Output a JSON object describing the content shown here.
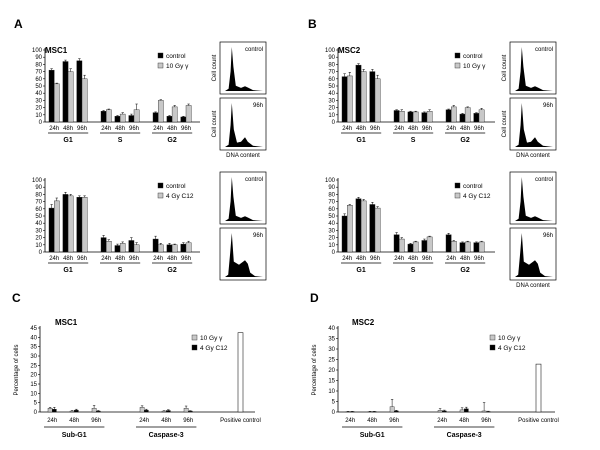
{
  "colors": {
    "series_dark": "#000000",
    "series_light": "#c8c8c8",
    "bar_stroke": "#222222"
  },
  "chart_data": [
    {
      "id": "A1",
      "panel_label": "A",
      "type": "bar",
      "title": "MSC1",
      "ylabel": "",
      "ylim": [
        0,
        100
      ],
      "yticks": [
        0,
        10,
        20,
        30,
        40,
        50,
        60,
        70,
        80,
        90,
        100
      ],
      "subcategories": [
        "24h",
        "48h",
        "96h"
      ],
      "groups": [
        "G1",
        "S",
        "G2"
      ],
      "legend_position": "right",
      "series": [
        {
          "name": "control",
          "color": "#000000",
          "values": [
            [
              72,
              84,
              85
            ],
            [
              15,
              8,
              9
            ],
            [
              13,
              8,
              7
            ]
          ],
          "errors": [
            [
              2,
              2,
              3
            ],
            [
              1,
              1,
              2
            ],
            [
              1,
              1,
              1
            ]
          ]
        },
        {
          "name": "10 Gy γ",
          "color": "#c8c8c8",
          "values": [
            [
              53,
              70,
              60
            ],
            [
              17,
              11,
              17
            ],
            [
              30,
              21,
              23
            ]
          ],
          "errors": [
            [
              1,
              4,
              5
            ],
            [
              1,
              2,
              8
            ],
            [
              1,
              2,
              2
            ]
          ]
        }
      ]
    },
    {
      "id": "A2",
      "panel_label": "",
      "type": "bar",
      "title": "",
      "ylabel": "",
      "ylim": [
        0,
        100
      ],
      "yticks": [
        0,
        10,
        20,
        30,
        40,
        50,
        60,
        70,
        80,
        90,
        100
      ],
      "subcategories": [
        "24h",
        "48h",
        "96h"
      ],
      "groups": [
        "G1",
        "S",
        "G2"
      ],
      "legend_position": "right",
      "series": [
        {
          "name": "control",
          "color": "#000000",
          "values": [
            [
              61,
              80,
              76
            ],
            [
              20,
              9,
              16
            ],
            [
              18,
              10,
              11
            ]
          ],
          "errors": [
            [
              5,
              3,
              2
            ],
            [
              3,
              2,
              4
            ],
            [
              4,
              2,
              2
            ]
          ]
        },
        {
          "name": "4 Gy C12",
          "color": "#c8c8c8",
          "values": [
            [
              71,
              78,
              76
            ],
            [
              15,
              12,
              10
            ],
            [
              10,
              10,
              13
            ]
          ],
          "errors": [
            [
              4,
              2,
              2
            ],
            [
              2,
              2,
              3
            ],
            [
              2,
              1,
              2
            ]
          ]
        }
      ]
    },
    {
      "id": "B1",
      "panel_label": "B",
      "type": "bar",
      "title": "MSC2",
      "ylabel": "",
      "ylim": [
        0,
        100
      ],
      "yticks": [
        0,
        10,
        20,
        30,
        40,
        50,
        60,
        70,
        80,
        90,
        100
      ],
      "subcategories": [
        "24h",
        "48h",
        "96h"
      ],
      "groups": [
        "G1",
        "S",
        "G2"
      ],
      "legend_position": "right",
      "series": [
        {
          "name": "control",
          "color": "#000000",
          "values": [
            [
              63,
              79,
              70
            ],
            [
              16,
              14,
              13
            ],
            [
              17,
              11,
              12
            ]
          ],
          "errors": [
            [
              4,
              2,
              3
            ],
            [
              1,
              1,
              1
            ],
            [
              1,
              1,
              1
            ]
          ]
        },
        {
          "name": "10 Gy γ",
          "color": "#c8c8c8",
          "values": [
            [
              64,
              70,
              60
            ],
            [
              15,
              14,
              15
            ],
            [
              21,
              20,
              17
            ]
          ],
          "errors": [
            [
              5,
              3,
              5
            ],
            [
              2,
              1,
              2
            ],
            [
              2,
              1,
              2
            ]
          ]
        }
      ]
    },
    {
      "id": "B2",
      "panel_label": "",
      "type": "bar",
      "title": "",
      "ylabel": "",
      "ylim": [
        0,
        100
      ],
      "yticks": [
        0,
        10,
        20,
        30,
        40,
        50,
        60,
        70,
        80,
        90,
        100
      ],
      "subcategories": [
        "24h",
        "48h",
        "96h"
      ],
      "groups": [
        "G1",
        "S",
        "G2"
      ],
      "legend_position": "right",
      "series": [
        {
          "name": "control",
          "color": "#000000",
          "values": [
            [
              50,
              74,
              66
            ],
            [
              24,
              11,
              16
            ],
            [
              24,
              13,
              13
            ]
          ],
          "errors": [
            [
              3,
              2,
              3
            ],
            [
              3,
              1,
              2
            ],
            [
              2,
              1,
              1
            ]
          ]
        },
        {
          "name": "4 Gy C12",
          "color": "#c8c8c8",
          "values": [
            [
              65,
              71,
              61
            ],
            [
              18,
              14,
              21
            ],
            [
              15,
              14,
              14
            ]
          ],
          "errors": [
            [
              1,
              2,
              2
            ],
            [
              2,
              1,
              1
            ],
            [
              1,
              1,
              1
            ]
          ]
        }
      ]
    },
    {
      "id": "C",
      "panel_label": "C",
      "type": "bar",
      "title": "MSC1",
      "ylabel": "Percentage of cells",
      "ylim": [
        0,
        45
      ],
      "yticks": [
        0,
        5,
        10,
        15,
        20,
        25,
        30,
        35,
        40,
        45
      ],
      "subcategories": [
        "24h",
        "48h",
        "96h"
      ],
      "groups": [
        "Sub-G1",
        "Caspase-3"
      ],
      "control_label": "Positive control",
      "control_value": 42.5,
      "legend_position": "top-right",
      "series": [
        {
          "name": "10 Gy γ",
          "color": "#c8c8c8",
          "values": [
            [
              2,
              0.5,
              2
            ],
            [
              2.5,
              0.5,
              2
            ]
          ],
          "errors": [
            [
              0.5,
              0.3,
              1.5
            ],
            [
              0.8,
              0.2,
              1.2
            ]
          ]
        },
        {
          "name": "4 Gy C12",
          "color": "#000000",
          "values": [
            [
              1.5,
              1,
              0.5
            ],
            [
              1,
              0.8,
              0.5
            ]
          ],
          "errors": [
            [
              1,
              0.5,
              0.3
            ],
            [
              0.5,
              0.4,
              0.2
            ]
          ]
        }
      ]
    },
    {
      "id": "D",
      "panel_label": "D",
      "type": "bar",
      "title": "MSC2",
      "ylabel": "Percentage of cells",
      "ylim": [
        0,
        40
      ],
      "yticks": [
        0,
        5,
        10,
        15,
        20,
        25,
        30,
        35,
        40
      ],
      "subcategories": [
        "24h",
        "48h",
        "96h"
      ],
      "groups": [
        "Sub-G1",
        "Caspase-3"
      ],
      "control_label": "Positive control",
      "control_value": 22.8,
      "legend_position": "top-right",
      "series": [
        {
          "name": "10 Gy γ",
          "color": "#c8c8c8",
          "values": [
            [
              0.2,
              0.2,
              2.5
            ],
            [
              0.8,
              1,
              0.5
            ]
          ],
          "errors": [
            [
              0.1,
              0.1,
              3.5
            ],
            [
              0.8,
              1,
              4
            ]
          ]
        },
        {
          "name": "4 Gy C12",
          "color": "#000000",
          "values": [
            [
              0.2,
              0.2,
              0.5
            ],
            [
              0.5,
              1.5,
              0.2
            ]
          ],
          "errors": [
            [
              0.1,
              0.1,
              0.3
            ],
            [
              0.4,
              0.8,
              0.2
            ]
          ]
        }
      ]
    }
  ],
  "histograms": [
    {
      "id": "A1",
      "top_label": "control",
      "bottom_label": "96h",
      "ylabel": "Cell count",
      "xlabel": "DNA content"
    },
    {
      "id": "A2",
      "top_label": "control",
      "bottom_label": "96h",
      "ylabel": "",
      "xlabel": ""
    },
    {
      "id": "B1",
      "top_label": "control",
      "bottom_label": "96h",
      "ylabel": "Cell count",
      "xlabel": "DNA content"
    },
    {
      "id": "B2",
      "top_label": "control",
      "bottom_label": "96h",
      "ylabel": "",
      "xlabel": "DNA content"
    }
  ]
}
